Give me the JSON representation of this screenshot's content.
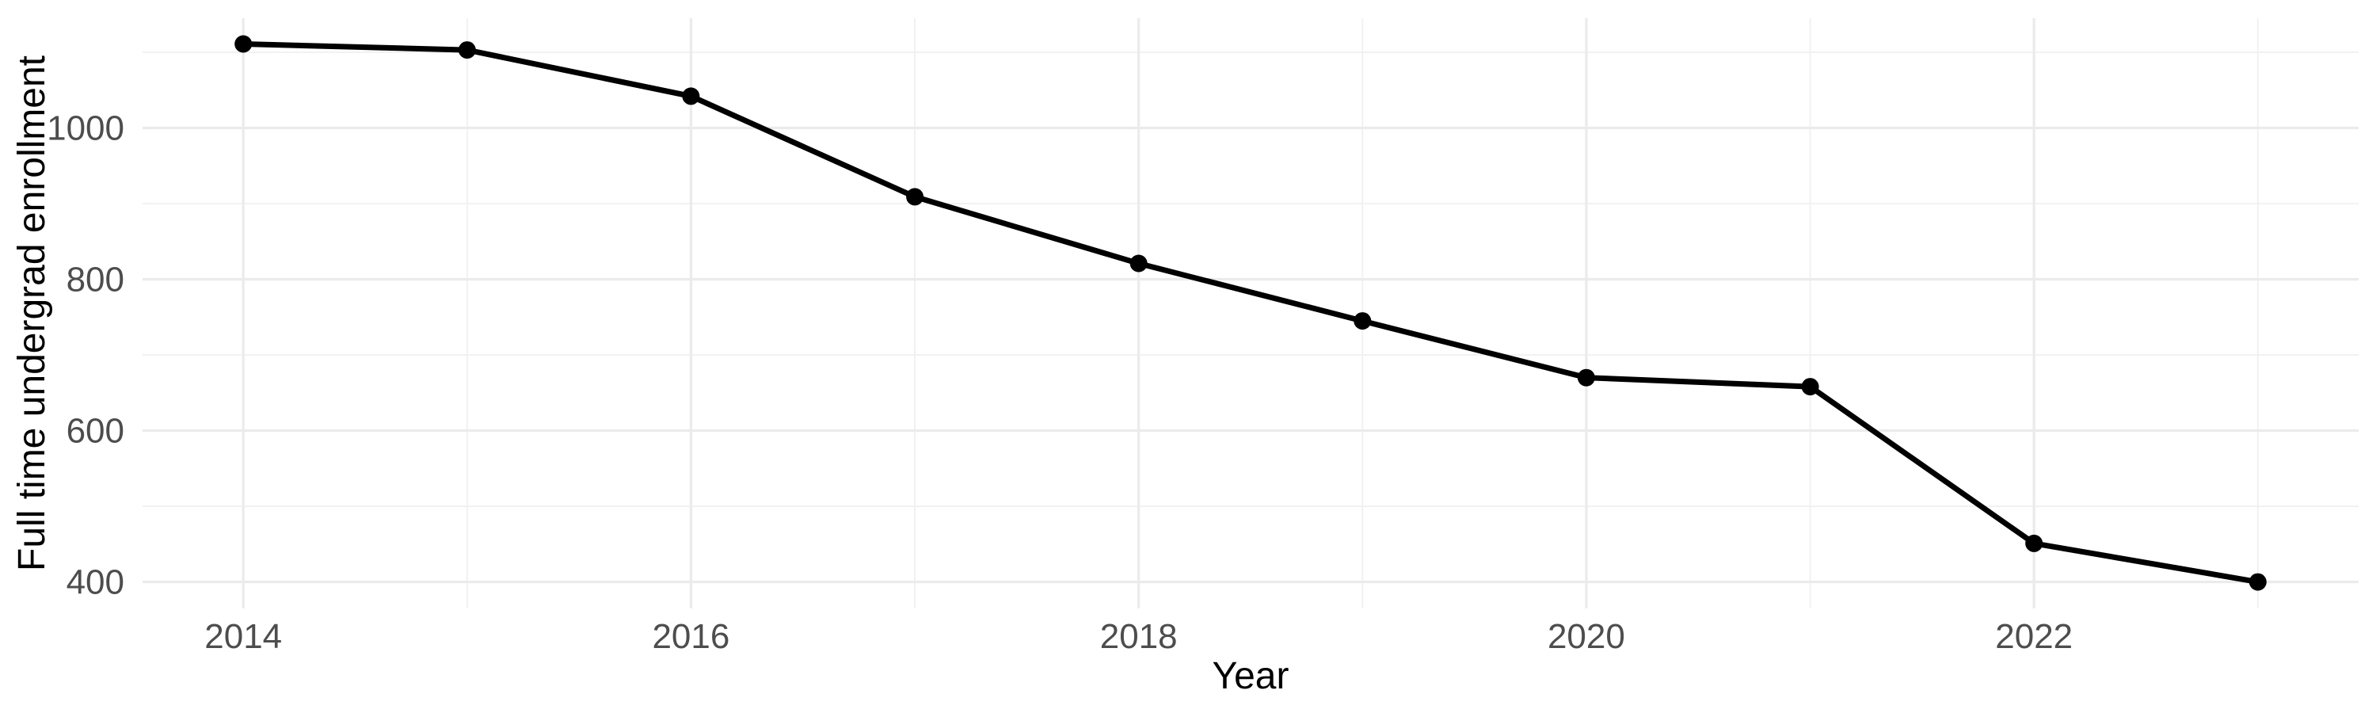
{
  "figure": {
    "background": "#FFFFFF"
  },
  "chart_data": {
    "type": "line",
    "title": "",
    "xlabel": "Year",
    "ylabel": "Full time undergrad enrollment",
    "x": [
      2014,
      2015,
      2016,
      2017,
      2018,
      2019,
      2020,
      2021,
      2022,
      2023
    ],
    "series": [
      {
        "name": "Full time undergrad enrollment",
        "values": [
          1111,
          1103,
          1042,
          909,
          821,
          745,
          670,
          658,
          451,
          400
        ],
        "line_color": "#000000",
        "point_color": "#000000"
      }
    ],
    "xlim": [
      2013.55,
      2023.45
    ],
    "ylim": [
      365,
      1145
    ],
    "x_ticks": {
      "major": [
        2014,
        2016,
        2018,
        2020,
        2022
      ],
      "minor": [
        2015,
        2017,
        2019,
        2021,
        2023
      ],
      "labels": [
        "2014",
        "2016",
        "2018",
        "2020",
        "2022"
      ]
    },
    "y_ticks": {
      "major": [
        400,
        600,
        800,
        1000
      ],
      "minor": [
        500,
        700,
        900,
        1100
      ],
      "labels": [
        "400",
        "600",
        "800",
        "1000"
      ]
    },
    "grid": {
      "show": true,
      "major_color": "#EBEBEB",
      "minor_color": "#F0F0F0"
    },
    "colors": {
      "tick_label_text": "#4D4D4D",
      "axis_title_text": "#000000",
      "panel_background": "#FFFFFF"
    },
    "legend_position": "none"
  }
}
